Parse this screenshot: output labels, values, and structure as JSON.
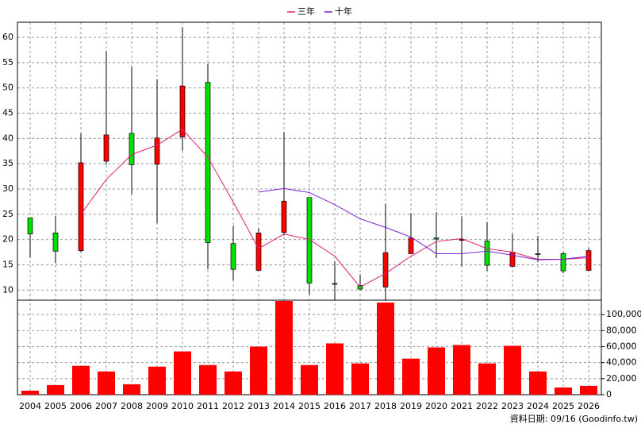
{
  "chart_data": {
    "type": "candlestick",
    "categories": [
      "2004",
      "2005",
      "2006",
      "2007",
      "2008",
      "2009",
      "2010",
      "2011",
      "2012",
      "2013",
      "2014",
      "2015",
      "2016",
      "2017",
      "2018",
      "2019",
      "2020",
      "2021",
      "2022",
      "2023",
      "2024",
      "2025",
      "2026"
    ],
    "open": [
      24.3,
      21.3,
      17.8,
      35.5,
      41.0,
      34.9,
      40.3,
      51.1,
      19.2,
      13.9,
      21.4,
      28.3,
      11.3,
      10.9,
      10.6,
      17.2,
      20.3,
      20.0,
      19.7,
      14.7,
      17.2,
      17.2,
      13.9
    ],
    "high": [
      24.3,
      24.7,
      41.0,
      57.3,
      54.2,
      51.7,
      62.0,
      54.8,
      22.7,
      22.2,
      41.3,
      28.3,
      15.6,
      13.1,
      27.1,
      25.2,
      25.4,
      24.6,
      23.5,
      21.1,
      20.7,
      17.5,
      18.3
    ],
    "low": [
      16.4,
      15.3,
      17.5,
      34.8,
      29.0,
      23.2,
      37.6,
      14.1,
      11.9,
      13.8,
      20.8,
      9.1,
      8.1,
      10.0,
      8.1,
      17.2,
      16.3,
      14.7,
      13.8,
      14.5,
      15.6,
      13.3,
      13.8
    ],
    "close": [
      21.1,
      17.7,
      35.2,
      40.7,
      34.8,
      40.1,
      50.4,
      19.4,
      14.1,
      21.3,
      27.6,
      11.4,
      11.2,
      10.2,
      17.4,
      20.3,
      20.1,
      20.0,
      14.9,
      17.5,
      17.1,
      13.8,
      17.8
    ],
    "up_color": "#ff0000",
    "down_color": "#00e000",
    "series": [
      {
        "name": "三年",
        "color": "#e0206e",
        "values": [
          null,
          null,
          25.0,
          31.9,
          36.8,
          38.7,
          41.8,
          36.3,
          27.4,
          18.2,
          21.1,
          20.0,
          16.7,
          10.6,
          13.3,
          16.7,
          19.6,
          20.2,
          18.2,
          17.5,
          16.1,
          16.1,
          16.4
        ]
      },
      {
        "name": "十年",
        "color": "#7a1fd6",
        "values": [
          null,
          null,
          null,
          null,
          null,
          null,
          null,
          null,
          null,
          29.4,
          30.1,
          29.3,
          26.9,
          24.1,
          22.4,
          20.5,
          17.2,
          17.2,
          17.7,
          16.9,
          16.0,
          16.1,
          16.7
        ]
      }
    ],
    "ylim": [
      8,
      63
    ],
    "yticks": [
      10,
      15,
      20,
      25,
      30,
      35,
      40,
      45,
      50,
      55,
      60
    ],
    "grid": true,
    "volume": {
      "color": "#ff0000",
      "values": [
        5000,
        12000,
        36000,
        29000,
        13000,
        35000,
        54000,
        37000,
        29000,
        60000,
        117000,
        37000,
        64000,
        39000,
        115000,
        45000,
        59000,
        62000,
        39000,
        61000,
        29000,
        9000,
        11000
      ],
      "ylim": [
        0,
        118000
      ],
      "yticks": [
        0,
        {
          "value": 20000,
          "label": "20,000"
        },
        {
          "value": 40000,
          "label": "40,000"
        },
        {
          "value": 60000,
          "label": "60,000"
        },
        {
          "value": 80000,
          "label": "80,000"
        },
        {
          "value": 100000,
          "label": "100,000"
        }
      ]
    },
    "annotation": "資料日期: 09/16 (Goodinfo.tw)"
  }
}
